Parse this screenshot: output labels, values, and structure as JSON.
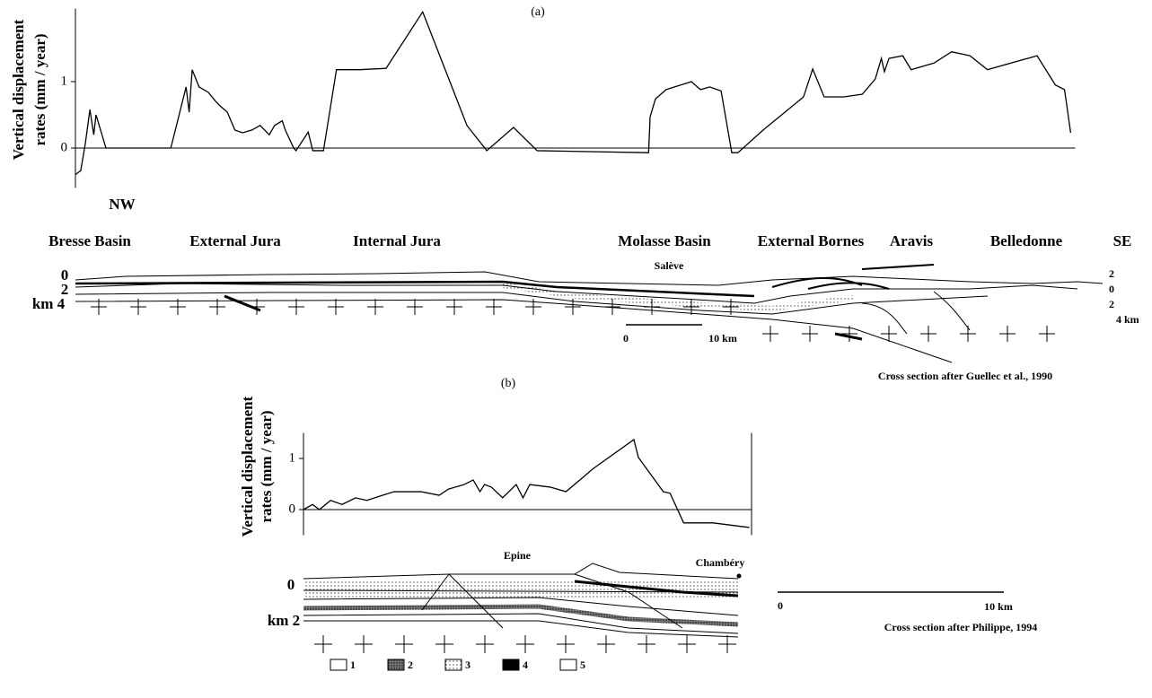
{
  "chart_data": [
    {
      "type": "line",
      "panel_label": "(a)",
      "y_label": [
        "Vertical displacement",
        "rates (mm / year)"
      ],
      "xlim": [
        0,
        131
      ],
      "ylim": [
        -0.6,
        2.1
      ],
      "yticks": [
        0,
        1
      ],
      "zero_line": true,
      "color": "#000000",
      "x": [
        0,
        0.7,
        1.3,
        1.9,
        2.4,
        2.7,
        3.3,
        4.0,
        12.5,
        14.5,
        14.9,
        15.3,
        16.2,
        17.4,
        18.4,
        18.9,
        19.9,
        20.9,
        21.9,
        23.1,
        24.2,
        25.4,
        26.1,
        27.1,
        27.5,
        28.6,
        28.9,
        30.5,
        31.1,
        32.5,
        34.2,
        37.2,
        40.7,
        45.5,
        51.3,
        53.9,
        57.4,
        60.5,
        75.1,
        75.3,
        76.0,
        77.4,
        80.7,
        81.9,
        83.1,
        84.6,
        86.0,
        86.8,
        90.1,
        95.4,
        96.6,
        98.1,
        100.7,
        103.1,
        104.8,
        105.6,
        106.0,
        106.6,
        108.4,
        109.5,
        112.5,
        114.8,
        117.2,
        119.5,
        126.0,
        128.4,
        129.6,
        130.4
      ],
      "values": [
        -0.4,
        -0.34,
        0.07,
        0.58,
        0.2,
        0.5,
        0.27,
        0,
        0,
        0.92,
        0.54,
        1.18,
        0.92,
        0.84,
        0.7,
        0.64,
        0.54,
        0.27,
        0.23,
        0.27,
        0.34,
        0.2,
        0.34,
        0.41,
        0.27,
        0,
        -0.04,
        0.24,
        -0.04,
        -0.04,
        1.18,
        1.18,
        1.2,
        2.05,
        0.34,
        -0.04,
        0.31,
        -0.04,
        -0.07,
        0.47,
        0.74,
        0.88,
        1.0,
        0.88,
        0.92,
        0.86,
        -0.07,
        -0.07,
        0.27,
        0.77,
        1.19,
        0.77,
        0.77,
        0.81,
        1.04,
        1.35,
        1.15,
        1.35,
        1.39,
        1.18,
        1.28,
        1.45,
        1.39,
        1.18,
        1.39,
        0.95,
        0.88,
        0.23
      ],
      "region_labels": [
        "NW",
        "SE",
        "Bresse Basin",
        "External Jura",
        "Internal Jura",
        "Molasse Basin",
        "External Bornes",
        "Aravis",
        "Belledonne"
      ]
    },
    {
      "type": "line",
      "panel_label": "(b)",
      "y_label": [
        "Vertical displacement",
        "rates (mm / year)"
      ],
      "xlim": [
        0,
        19.8
      ],
      "ylim": [
        -0.5,
        1.5
      ],
      "yticks": [
        0,
        1
      ],
      "zero_line": true,
      "right_frame": true,
      "color": "#000000",
      "x": [
        0,
        0.4,
        0.7,
        1.2,
        1.7,
        2.3,
        2.8,
        3.5,
        4.0,
        5.2,
        6.0,
        6.4,
        7.1,
        7.5,
        7.8,
        8.0,
        8.3,
        8.8,
        9.4,
        9.7,
        10.0,
        10.9,
        11.6,
        12.8,
        14.6,
        14.8,
        15.9,
        16.2,
        16.8,
        18.1,
        19.7
      ],
      "values": [
        0,
        0.1,
        0,
        0.18,
        0.1,
        0.23,
        0.18,
        0.28,
        0.35,
        0.35,
        0.28,
        0.4,
        0.49,
        0.58,
        0.35,
        0.49,
        0.44,
        0.23,
        0.49,
        0.23,
        0.49,
        0.44,
        0.35,
        0.8,
        1.37,
        1.02,
        0.35,
        0.32,
        -0.26,
        -0.26,
        -0.35
      ]
    }
  ],
  "sections": [
    {
      "depth_left": [
        "0",
        "2",
        "km 4"
      ],
      "depth_right": [
        "2",
        "0",
        "2",
        "4 km"
      ],
      "places": [
        "Salève"
      ],
      "scale": [
        "0",
        "10 km"
      ],
      "credit": "Cross section after Guellec et al., 1990"
    },
    {
      "depth_left": [
        "0",
        "km 2"
      ],
      "places": [
        "Epine",
        "Chambéry"
      ],
      "scale": [
        "0",
        "10 km"
      ],
      "credit": "Cross section after Philippe, 1994"
    }
  ],
  "legend": [
    "1",
    "2",
    "3",
    "4",
    "5"
  ]
}
